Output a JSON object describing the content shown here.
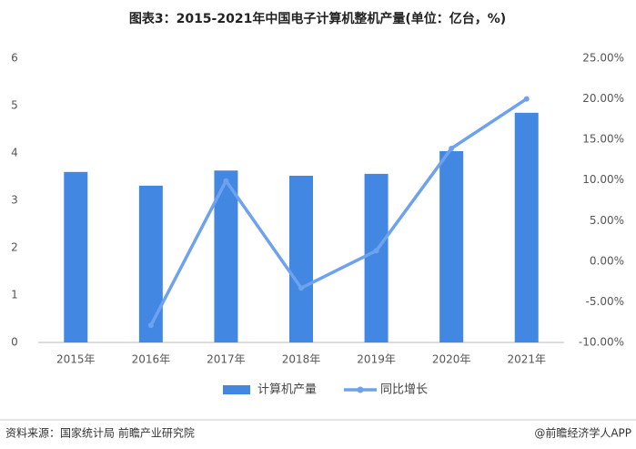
{
  "chart_data": {
    "type": "bar",
    "title": "图表3：2015-2021年中国电子计算机整机产量(单位：亿台，%)",
    "categories": [
      "2015年",
      "2016年",
      "2017年",
      "2018年",
      "2019年",
      "2020年",
      "2021年"
    ],
    "series": [
      {
        "name": "计算机产量",
        "type": "bar",
        "color": "#4288e3",
        "values": [
          3.6,
          3.31,
          3.63,
          3.52,
          3.56,
          4.04,
          4.85
        ]
      },
      {
        "name": "同比增长",
        "type": "line",
        "axis": "y2",
        "color": "#6ea2ee",
        "values": [
          null,
          -7.9,
          9.9,
          -3.3,
          1.3,
          13.9,
          20.0
        ]
      }
    ],
    "ylim": [
      0,
      6
    ],
    "yticks": [
      0,
      1,
      2,
      3,
      4,
      5,
      6
    ],
    "y2lim": [
      -10,
      25
    ],
    "y2ticks": [
      {
        "value": -10,
        "label": "-10.00%"
      },
      {
        "value": -5,
        "label": "-5.00%"
      },
      {
        "value": 0,
        "label": "0.00%"
      },
      {
        "value": 5,
        "label": "5.00%"
      },
      {
        "value": 10,
        "label": "10.00%"
      },
      {
        "value": 15,
        "label": "15.00%"
      },
      {
        "value": 20,
        "label": "20.00%"
      },
      {
        "value": 25,
        "label": "25.00%"
      }
    ],
    "grid": false,
    "legend": "bottom"
  },
  "footer": {
    "source": "资料来源：国家统计局 前瞻产业研究院",
    "credit": "@前瞻经济学人APP"
  }
}
